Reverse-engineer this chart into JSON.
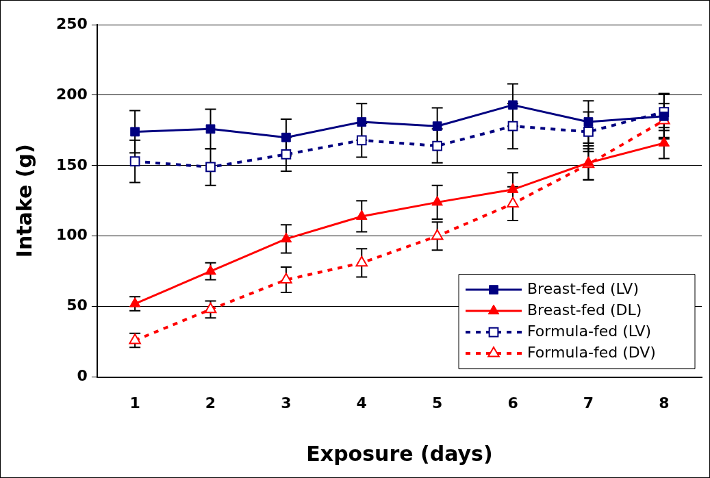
{
  "chart_data": {
    "type": "line",
    "xlabel": "Exposure (days)",
    "ylabel": "Intake (g)",
    "categories": [
      "1",
      "2",
      "3",
      "4",
      "5",
      "6",
      "7",
      "8"
    ],
    "ylim": [
      0,
      250
    ],
    "yticks": [
      0,
      50,
      100,
      150,
      200,
      250
    ],
    "grid": "y",
    "legend": "bottom right",
    "series": [
      {
        "name": "Breast-fed (LV)",
        "color": "#000080",
        "marker": "square",
        "line_style": "solid",
        "values": [
          174,
          176,
          170,
          181,
          178,
          193,
          181,
          185
        ],
        "errors": [
          15,
          14,
          13,
          13,
          13,
          15,
          15,
          16
        ]
      },
      {
        "name": "Breast-fed (DL)",
        "color": "#ff0000",
        "marker": "triangle",
        "line_style": "solid",
        "values": [
          52,
          75,
          98,
          114,
          124,
          133,
          152,
          166
        ],
        "errors": [
          5,
          6,
          10,
          11,
          12,
          12,
          12,
          11
        ]
      },
      {
        "name": "Formula-fed (LV)",
        "color": "#000080",
        "marker": "square",
        "line_style": "dashed",
        "values": [
          153,
          149,
          158,
          168,
          164,
          178,
          174,
          188
        ],
        "errors": [
          15,
          13,
          12,
          12,
          12,
          16,
          14,
          13
        ]
      },
      {
        "name": "Formula-fed (DV)",
        "color": "#ff0000",
        "marker": "triangle",
        "line_style": "dashed",
        "values": [
          26,
          48,
          69,
          81,
          100,
          123,
          151,
          182
        ],
        "errors": [
          5,
          6,
          9,
          10,
          10,
          12,
          11,
          12
        ]
      }
    ]
  }
}
